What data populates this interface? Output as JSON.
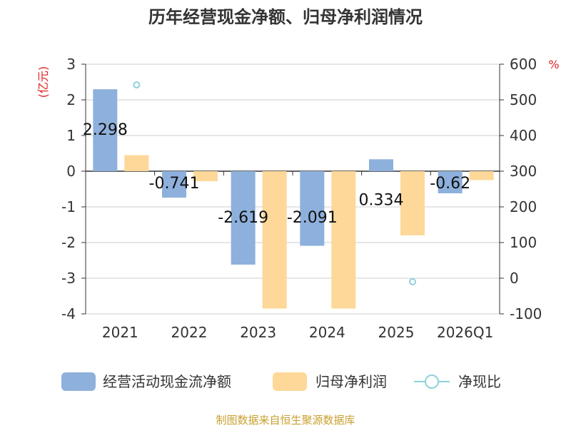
{
  "chart_data": {
    "type": "bar",
    "title": "历年经营现金净额、归母净利润情况",
    "categories": [
      "2021",
      "2022",
      "2023",
      "2024",
      "2025",
      "2026Q1"
    ],
    "left_axis": {
      "label": "(亿元)",
      "range": [
        -4,
        3
      ],
      "ticks": [
        3,
        2,
        1,
        0,
        -1,
        -2,
        -3,
        -4
      ]
    },
    "right_axis": {
      "label": "%",
      "range": [
        -100,
        600
      ],
      "ticks": [
        600,
        500,
        400,
        300,
        200,
        100,
        0,
        -100
      ]
    },
    "series": [
      {
        "name": "经营活动现金流净额",
        "type": "bar",
        "axis": "left",
        "color": "#8eb0dc",
        "values": [
          2.298,
          -0.741,
          -2.619,
          -2.091,
          0.334,
          -0.62
        ],
        "labels": [
          "2.298",
          "-0.741",
          "-2.619",
          "-2.091",
          "0.334",
          "-0.62"
        ]
      },
      {
        "name": "归母净利润",
        "type": "bar",
        "axis": "left",
        "color": "#fdd898",
        "values": [
          0.45,
          -0.28,
          -3.85,
          -3.85,
          -1.8,
          -0.25
        ]
      },
      {
        "name": "净现比",
        "type": "scatter",
        "axis": "right",
        "color": "#8ed1dc",
        "values": [
          542,
          null,
          null,
          null,
          -10,
          null
        ]
      }
    ],
    "source": "制图数据来自恒生聚源数据库"
  }
}
